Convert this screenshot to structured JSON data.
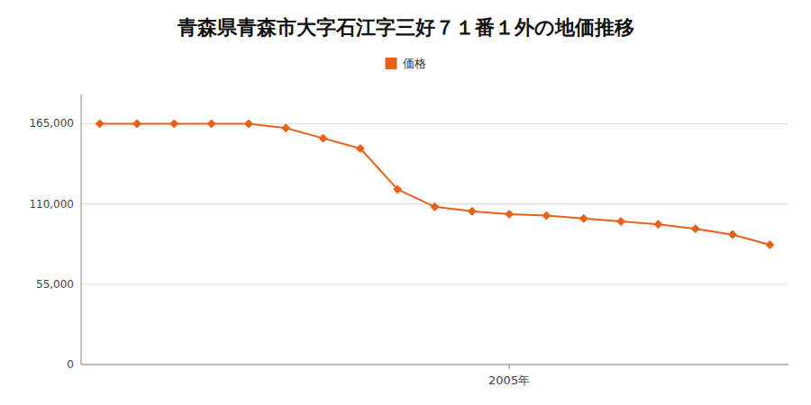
{
  "chart_data": {
    "type": "line",
    "title": "青森県青森市大字石江字三好７１番１外の地価推移",
    "x": [
      1994,
      1995,
      1996,
      1997,
      1998,
      1999,
      2000,
      2001,
      2002,
      2003,
      2004,
      2005,
      2006,
      2007,
      2008,
      2009,
      2010,
      2011,
      2012
    ],
    "series": [
      {
        "name": "価格",
        "color": "#e8611a",
        "marker": "diamond",
        "values": [
          165000,
          165000,
          165000,
          165000,
          165000,
          162000,
          155000,
          148000,
          120000,
          108000,
          105000,
          103000,
          102000,
          100000,
          98000,
          96000,
          93000,
          89000,
          82000
        ]
      }
    ],
    "xlim": [
      1993.5,
      2012.5
    ],
    "xticks": [
      {
        "value": 2005,
        "label": "2005年"
      }
    ],
    "ylim": [
      0,
      185000
    ],
    "yticks": [
      0,
      {
        "value": 55000,
        "label": "55,000"
      },
      {
        "value": 110000,
        "label": "110,000"
      },
      {
        "value": 165000,
        "label": "165,000"
      }
    ],
    "grid": true,
    "legend": "top"
  }
}
